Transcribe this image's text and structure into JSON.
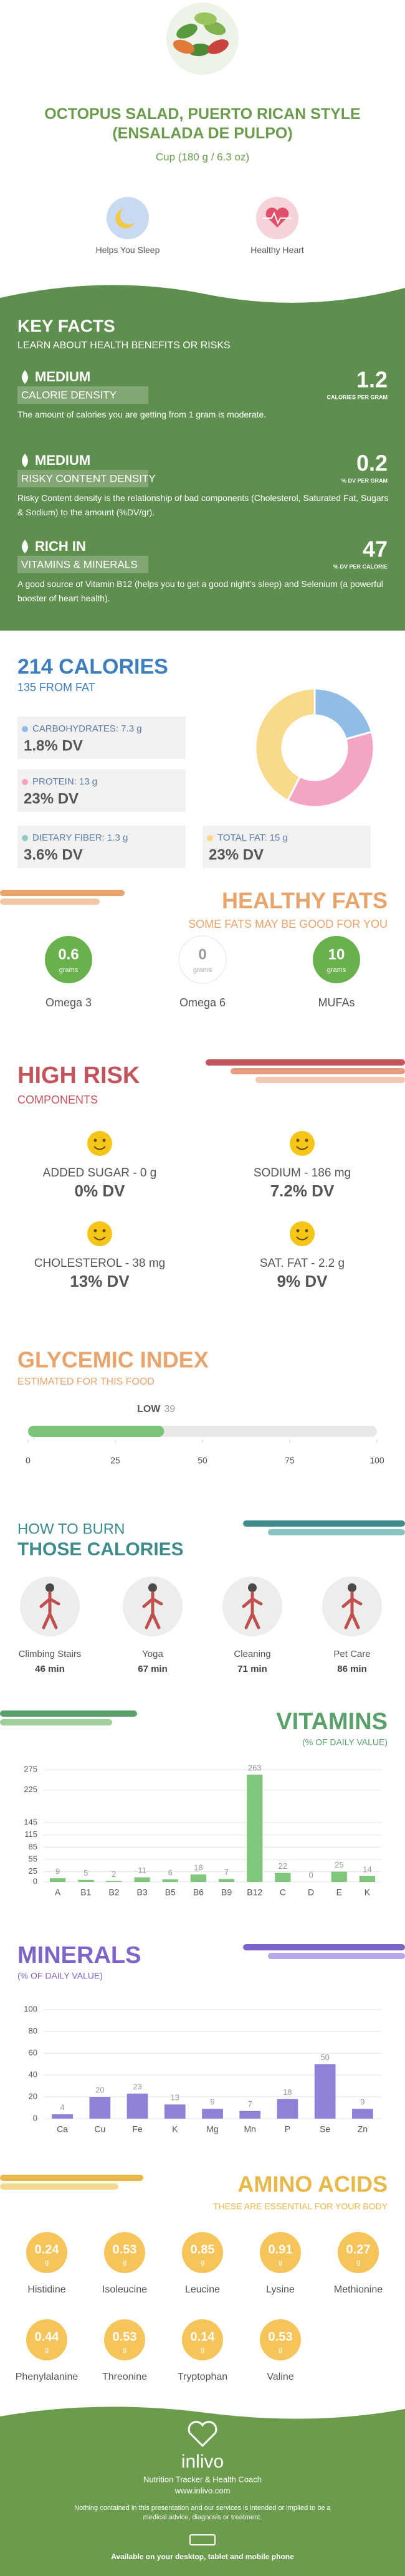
{
  "header": {
    "title": "OCTOPUS SALAD, PUERTO RICAN STYLE (ENSALADA DE PULPO)",
    "serving": "Cup (180 g / 6.3 oz)",
    "benefits": [
      "Helps You Sleep",
      "Healthy Heart"
    ]
  },
  "key_facts": {
    "title": "KEY FACTS",
    "subtitle": "LEARN ABOUT HEALTH BENEFITS OR RISKS",
    "items": [
      {
        "level": "MEDIUM",
        "label": "CALORIE DENSITY",
        "value": "1.2",
        "unit": "CALORIES PER GRAM",
        "text": "The amount of calories you are getting from 1 gram is moderate."
      },
      {
        "level": "MEDIUM",
        "label": "RISKY CONTENT DENSITY",
        "value": "0.2",
        "unit": "% DV PER GRAM",
        "text": "Risky Content density is the relationship of bad components (Cholesterol, Saturated Fat, Sugars & Sodium) to the amount (%DV/gr)."
      },
      {
        "level": "RICH IN",
        "label": "VITAMINS & MINERALS",
        "value": "47",
        "unit": "% DV PER CALORIE",
        "text": "A good source of Vitamin B12 (helps you to get a good night's sleep) and Selenium (a powerful booster of heart health)."
      }
    ]
  },
  "chart_data": [
    {
      "type": "pie",
      "title": "214 CALORIES",
      "subtitle": "135 FROM FAT",
      "values": [
        7.3,
        13,
        15
      ],
      "value_labels": [
        "CARBOHYDRATES: 7.3 g",
        "PROTEIN: 13 g",
        "TOTAL FAT: 15 g"
      ],
      "dv": [
        "1.8% DV",
        "23% DV",
        "23% DV"
      ],
      "colors": [
        "#8fbde6",
        "#f4a5c6",
        "#f9d98c"
      ],
      "extra": {
        "label": "DIETARY FIBER: 1.3 g",
        "dv": "3.6% DV",
        "color": "#8fc9c0"
      }
    },
    {
      "type": "gauge",
      "title": "GLYCEMIC INDEX",
      "subtitle": "ESTIMATED FOR THIS FOOD",
      "label": "LOW",
      "value": 39,
      "xlim": [
        0,
        100
      ],
      "xticks": [
        0,
        25,
        50,
        75,
        100
      ],
      "color": "#7cc47a"
    },
    {
      "type": "bar",
      "title": "VITAMINS",
      "subtitle": "(% OF DAILY VALUE)",
      "categories": [
        "A",
        "B1",
        "B2",
        "B3",
        "B5",
        "B6",
        "B9",
        "B12",
        "C",
        "D",
        "E",
        "K"
      ],
      "values": [
        9,
        5,
        2,
        11,
        6,
        18,
        7,
        263,
        22,
        0,
        25,
        14
      ],
      "color": "#80c77c",
      "ylim": [
        0,
        275
      ],
      "yticks": [
        0,
        25,
        55,
        85,
        115,
        145,
        225,
        275
      ],
      "grid": true
    },
    {
      "type": "bar",
      "title": "MINERALS",
      "subtitle": "(% OF DAILY VALUE)",
      "categories": [
        "Ca",
        "Cu",
        "Fe",
        "K",
        "Mg",
        "Mn",
        "P",
        "Se",
        "Zn"
      ],
      "values": [
        4,
        20,
        23,
        13,
        9,
        7,
        18,
        50,
        9
      ],
      "color": "#8f80d8",
      "ylim": [
        0,
        100
      ],
      "yticks": [
        0,
        20,
        40,
        60,
        80,
        100
      ],
      "grid": true
    }
  ],
  "healthy_fats": {
    "title": "HEALTHY FATS",
    "subtitle": "SOME FATS MAY BE GOOD FOR YOU",
    "items": [
      {
        "value": "0.6",
        "unit": "grams",
        "name": "Omega 3"
      },
      {
        "value": "0",
        "unit": "grams",
        "name": "Omega 6"
      },
      {
        "value": "10",
        "unit": "grams",
        "name": "MUFAs"
      }
    ]
  },
  "high_risk": {
    "title": "HIGH RISK",
    "subtitle": "COMPONENTS",
    "items": [
      {
        "label": "ADDED SUGAR - 0 g",
        "dv": "0% DV"
      },
      {
        "label": "SODIUM - 186 mg",
        "dv": "7.2% DV"
      },
      {
        "label": "CHOLESTEROL - 38 mg",
        "dv": "13% DV"
      },
      {
        "label": "SAT. FAT - 2.2 g",
        "dv": "9% DV"
      }
    ]
  },
  "burn": {
    "title": "HOW TO BURN",
    "subtitle": "THOSE CALORIES",
    "items": [
      {
        "name": "Climbing Stairs",
        "time": "46 min"
      },
      {
        "name": "Yoga",
        "time": "67 min"
      },
      {
        "name": "Cleaning",
        "time": "71 min"
      },
      {
        "name": "Pet Care",
        "time": "86 min"
      }
    ]
  },
  "amino_acids": {
    "title": "AMINO ACIDS",
    "subtitle": "THESE ARE ESSENTIAL FOR YOUR BODY",
    "items": [
      {
        "name": "Histidine",
        "value": "0.24",
        "unit": "g"
      },
      {
        "name": "Isoleucine",
        "value": "0.53",
        "unit": "g"
      },
      {
        "name": "Leucine",
        "value": "0.85",
        "unit": "g"
      },
      {
        "name": "Lysine",
        "value": "0.91",
        "unit": "g"
      },
      {
        "name": "Methionine",
        "value": "0.27",
        "unit": "g"
      },
      {
        "name": "Phenylalanine",
        "value": "0.44",
        "unit": "g"
      },
      {
        "name": "Threonine",
        "value": "0.53",
        "unit": "g"
      },
      {
        "name": "Tryptophan",
        "value": "0.14",
        "unit": "g"
      },
      {
        "name": "Valine",
        "value": "0.53",
        "unit": "g"
      }
    ]
  },
  "footer": {
    "brand": "inlivo",
    "tagline": "Nutrition Tracker & Health Coach",
    "url": "www.inlivo.com",
    "disclaimer": "Nothing contained in this presentation and our services is intended or implied to be a medical advice, diagnosis or treatment.",
    "availability": "Available on your desktop, tablet and mobile phone"
  }
}
